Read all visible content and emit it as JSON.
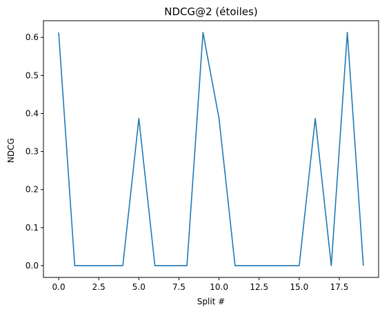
{
  "chart_data": {
    "type": "line",
    "title": "NDCG@2 (étoiles)",
    "xlabel": "Split #",
    "ylabel": "NDCG",
    "xlim": [
      -0.95,
      19.95
    ],
    "ylim": [
      -0.031,
      0.644
    ],
    "xticks": [
      0.0,
      2.5,
      5.0,
      7.5,
      10.0,
      12.5,
      15.0,
      17.5
    ],
    "xtick_labels": [
      "0.0",
      "2.5",
      "5.0",
      "7.5",
      "10.0",
      "12.5",
      "15.0",
      "17.5"
    ],
    "yticks": [
      0.0,
      0.1,
      0.2,
      0.3,
      0.4,
      0.5,
      0.6
    ],
    "ytick_labels": [
      "0.0",
      "0.1",
      "0.2",
      "0.3",
      "0.4",
      "0.5",
      "0.6"
    ],
    "grid": false,
    "series": [
      {
        "color": "#1f77b4",
        "x": [
          0,
          1,
          2,
          3,
          4,
          5,
          6,
          7,
          8,
          9,
          10,
          11,
          12,
          13,
          14,
          15,
          16,
          17,
          18,
          19
        ],
        "y": [
          0.613,
          0.0,
          0.0,
          0.0,
          0.0,
          0.387,
          0.0,
          0.0,
          0.0,
          0.613,
          0.387,
          0.0,
          0.0,
          0.0,
          0.0,
          0.0,
          0.387,
          0.0,
          0.613,
          0.0
        ]
      }
    ]
  }
}
